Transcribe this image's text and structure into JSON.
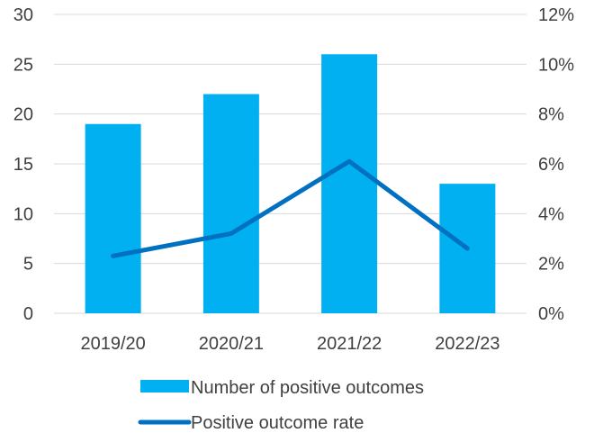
{
  "chart_data": {
    "type": "bar",
    "categories": [
      "2019/20",
      "2020/21",
      "2021/22",
      "2022/23"
    ],
    "series": [
      {
        "name": "Number of positive outcomes",
        "type": "bar",
        "axis": "left",
        "values": [
          19,
          22,
          26,
          13
        ],
        "color": "#00B0F0"
      },
      {
        "name": "Positive outcome rate",
        "type": "line",
        "axis": "right",
        "values": [
          0.023,
          0.032,
          0.061,
          0.026
        ],
        "color": "#0070C0"
      }
    ],
    "y_left": {
      "min": 0,
      "max": 30,
      "ticks": [
        "0",
        "5",
        "10",
        "15",
        "20",
        "25",
        "30"
      ]
    },
    "y_right": {
      "min": 0,
      "max": 0.12,
      "ticks": [
        "0%",
        "2%",
        "4%",
        "6%",
        "8%",
        "10%",
        "12%"
      ]
    },
    "grid": true,
    "gridline_color": "#D9D9D9",
    "legend": "bottom",
    "title": ""
  }
}
